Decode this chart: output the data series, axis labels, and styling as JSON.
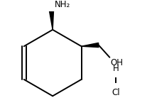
{
  "background_color": "#ffffff",
  "line_color": "#000000",
  "line_width": 1.4,
  "text_color": "#000000",
  "fig_width": 2.14,
  "fig_height": 1.55,
  "dpi": 100,
  "nh2_label": "NH₂",
  "nh2_fontsize": 8.5,
  "oh_label": "OH",
  "oh_fontsize": 8.5,
  "hcl_h_label": "H",
  "hcl_cl_label": "Cl",
  "hcl_fontsize": 8.5
}
